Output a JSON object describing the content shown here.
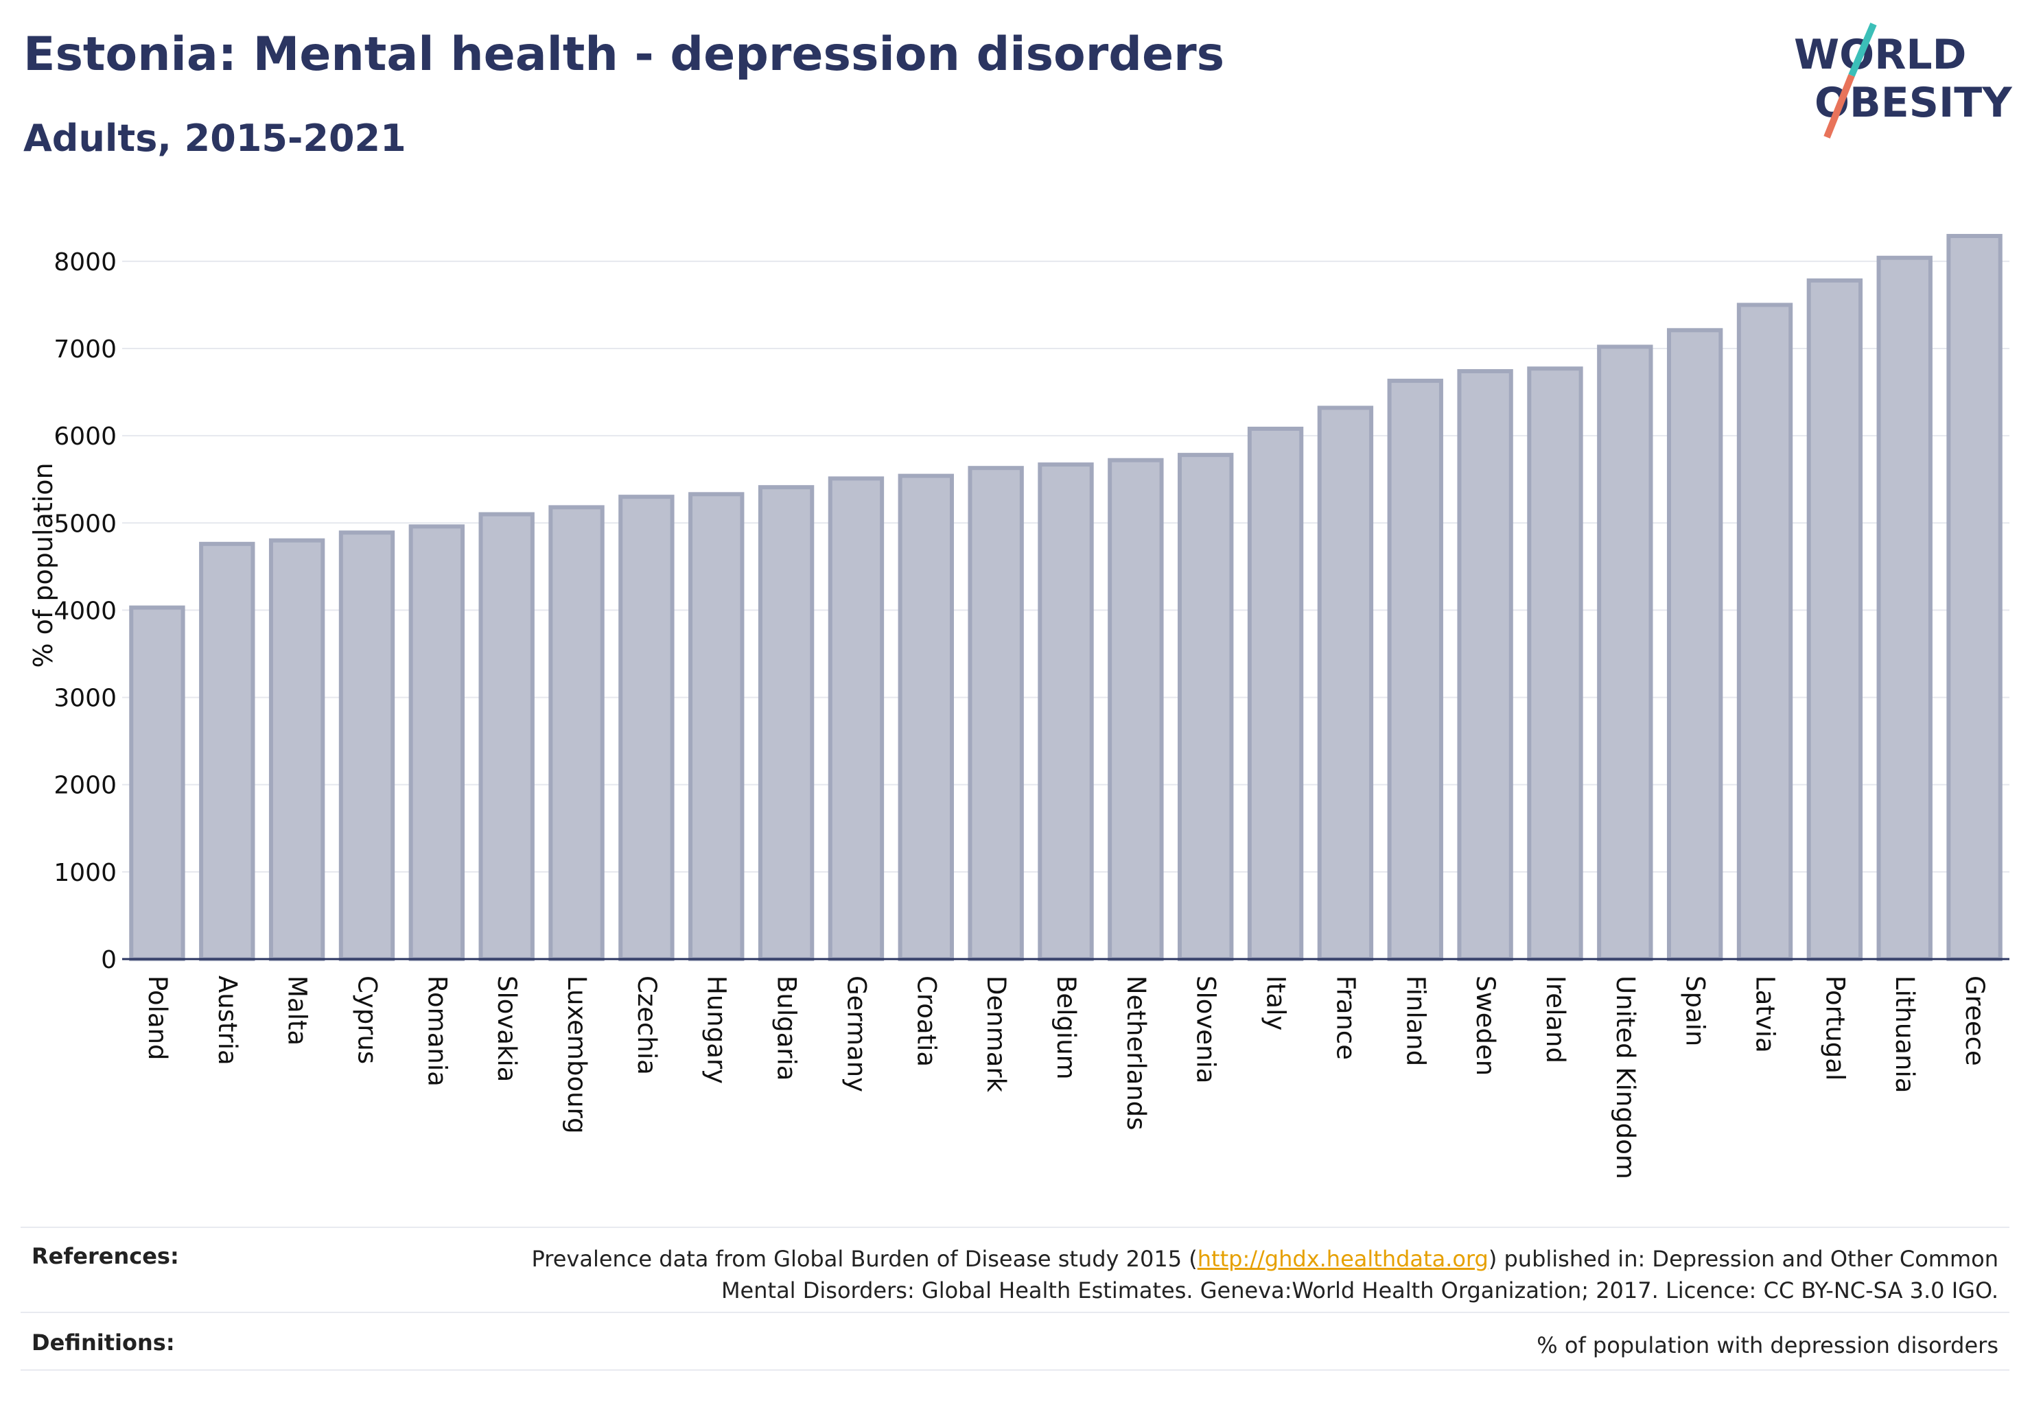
{
  "header": {
    "title": "Estonia: Mental health - depression disorders",
    "subtitle": "Adults, 2015-2021"
  },
  "logo": {
    "line1": "WORLD",
    "line2": "OBESITY",
    "slash_colors": [
      "#3bbfb8",
      "#e8735a"
    ]
  },
  "colors": {
    "bar_fill": "#bcc0cf",
    "bar_stroke": "#a2a8bd",
    "text": "#2b3561",
    "grid": "#e6e8ee"
  },
  "chart_data": {
    "type": "bar",
    "ylabel": "% of population",
    "xlabel": "",
    "ylim": [
      0,
      8400
    ],
    "yticks": [
      0,
      1000,
      2000,
      3000,
      4000,
      5000,
      6000,
      7000,
      8000
    ],
    "grid": true,
    "categories": [
      "Poland",
      "Austria",
      "Malta",
      "Cyprus",
      "Romania",
      "Slovakia",
      "Luxembourg",
      "Czechia",
      "Hungary",
      "Bulgaria",
      "Germany",
      "Croatia",
      "Denmark",
      "Belgium",
      "Netherlands",
      "Slovenia",
      "Italy",
      "France",
      "Finland",
      "Sweden",
      "Ireland",
      "United Kingdom",
      "Spain",
      "Latvia",
      "Portugal",
      "Lithuania",
      "Greece"
    ],
    "values": [
      4030,
      4760,
      4800,
      4890,
      4960,
      5100,
      5180,
      5300,
      5330,
      5410,
      5510,
      5540,
      5630,
      5670,
      5720,
      5780,
      6080,
      6320,
      6630,
      6740,
      6770,
      7020,
      7210,
      7500,
      7780,
      8040,
      8290
    ]
  },
  "footer": {
    "references_label": "References:",
    "references_text_1a": "Prevalence data from Global Burden of Disease study 2015 (",
    "references_link": "http://ghdx.healthdata.org",
    "references_text_1b": ") published in: Depression and Other Common",
    "references_text_2": "Mental Disorders: Global Health Estimates. Geneva:World Health Organization; 2017. Licence: CC BY-NC-SA 3.0 IGO.",
    "definitions_label": "Definitions:",
    "definitions_text": "% of population with depression disorders"
  }
}
